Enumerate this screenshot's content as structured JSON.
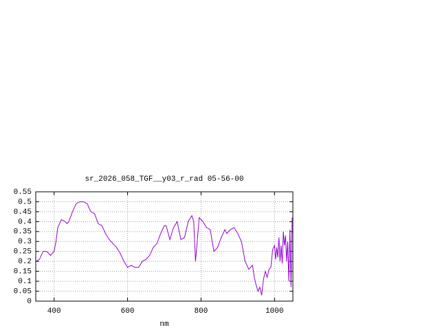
{
  "chart_data": {
    "type": "line",
    "title": "sr_2026_058_TGF__y03_r_rad 05-56-00",
    "x_label": "nm",
    "x": [
      350,
      360,
      370,
      380,
      390,
      400,
      405,
      410,
      420,
      430,
      435,
      440,
      450,
      460,
      470,
      480,
      490,
      500,
      510,
      520,
      530,
      540,
      550,
      560,
      570,
      580,
      590,
      600,
      610,
      620,
      630,
      640,
      650,
      660,
      670,
      680,
      690,
      700,
      705,
      715,
      725,
      735,
      745,
      755,
      765,
      775,
      780,
      785,
      790,
      795,
      805,
      815,
      825,
      835,
      845,
      855,
      865,
      870,
      880,
      890,
      900,
      910,
      920,
      930,
      940,
      945,
      950,
      955,
      960,
      965,
      970,
      975,
      980,
      985,
      990,
      995,
      1000,
      1003,
      1006,
      1009,
      1012,
      1015,
      1018,
      1021,
      1024,
      1027,
      1030,
      1033,
      1036,
      1039,
      1042,
      1045,
      1048
    ],
    "series": [
      {
        "name": "sr_2026_058_TGF__y03_r_rad 05-56-00",
        "color": "#9400d3",
        "values": [
          0.2,
          0.21,
          0.25,
          0.25,
          0.23,
          0.25,
          0.3,
          0.37,
          0.41,
          0.4,
          0.39,
          0.4,
          0.45,
          0.49,
          0.5,
          0.5,
          0.49,
          0.45,
          0.44,
          0.39,
          0.38,
          0.34,
          0.31,
          0.29,
          0.27,
          0.24,
          0.2,
          0.17,
          0.18,
          0.17,
          0.17,
          0.2,
          0.21,
          0.23,
          0.27,
          0.29,
          0.34,
          0.38,
          0.38,
          0.31,
          0.37,
          0.4,
          0.31,
          0.32,
          0.4,
          0.43,
          0.4,
          0.2,
          0.31,
          0.42,
          0.4,
          0.37,
          0.36,
          0.25,
          0.27,
          0.32,
          0.36,
          0.34,
          0.36,
          0.37,
          0.34,
          0.3,
          0.2,
          0.16,
          0.18,
          0.12,
          0.08,
          0.05,
          0.07,
          0.03,
          0.11,
          0.15,
          0.12,
          0.16,
          0.17,
          0.26,
          0.28,
          0.21,
          0.27,
          0.22,
          0.32,
          0.2,
          0.28,
          0.19,
          0.35,
          0.28,
          0.33,
          0.2,
          0.3,
          0.1,
          0.36,
          0.07,
          0.42
        ]
      }
    ],
    "xlim": [
      350,
      1050
    ],
    "ylim": [
      0,
      0.55
    ],
    "xticks": [
      400,
      600,
      800,
      1000
    ],
    "yticks": [
      0,
      0.05,
      0.1,
      0.15,
      0.2,
      0.25,
      0.3,
      0.35,
      0.4,
      0.45,
      0.5,
      0.55
    ],
    "grid": true
  }
}
